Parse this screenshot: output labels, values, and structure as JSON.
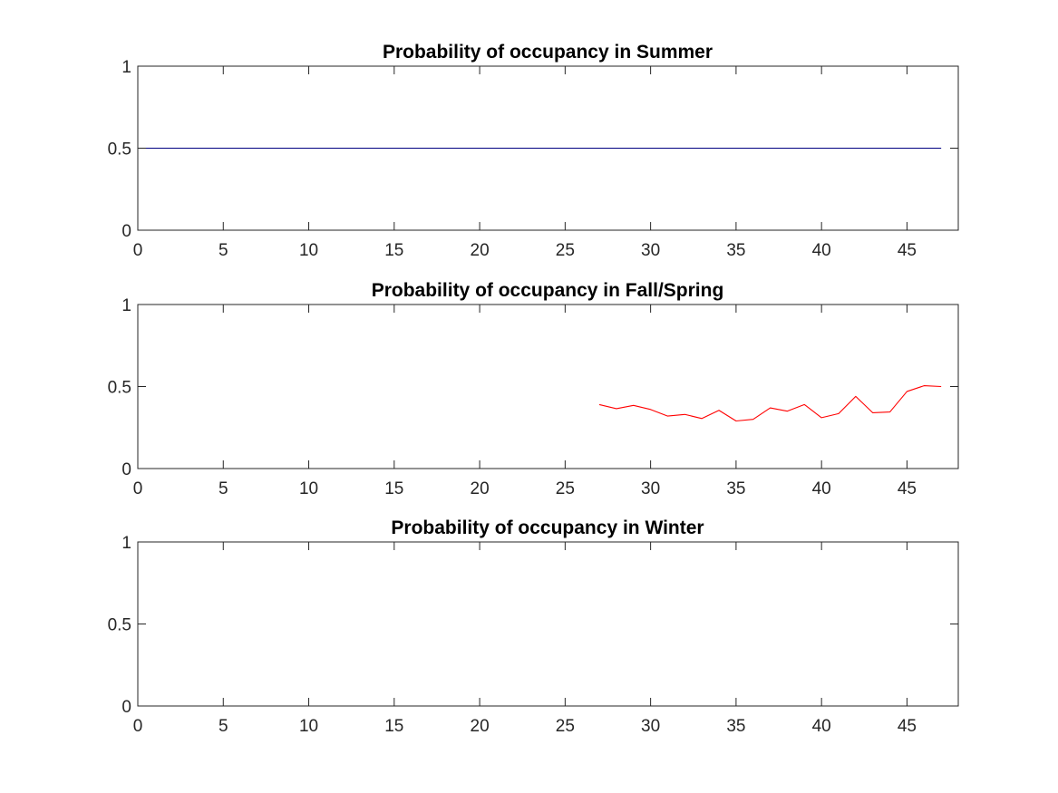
{
  "chart_data": [
    {
      "type": "line",
      "title": "Probability of occupancy in Summer",
      "xlabel": "",
      "ylabel": "",
      "xlim": [
        0,
        48
      ],
      "ylim": [
        0,
        1
      ],
      "x_ticks": [
        "0",
        "5",
        "10",
        "15",
        "20",
        "25",
        "30",
        "35",
        "40",
        "45"
      ],
      "y_ticks": [
        "0",
        "0.5",
        "1"
      ],
      "grid": false,
      "series": [
        {
          "color": "#000080",
          "x": [
            0,
            47
          ],
          "y": [
            0.5,
            0.5
          ]
        }
      ]
    },
    {
      "type": "line",
      "title": "Probability of occupancy in Fall/Spring",
      "xlabel": "",
      "ylabel": "",
      "xlim": [
        0,
        48
      ],
      "ylim": [
        0,
        1
      ],
      "x_ticks": [
        "0",
        "5",
        "10",
        "15",
        "20",
        "25",
        "30",
        "35",
        "40",
        "45"
      ],
      "y_ticks": [
        "0",
        "0.5",
        "1"
      ],
      "grid": false,
      "series": [
        {
          "color": "#ff0000",
          "x": [
            27,
            28,
            29,
            30,
            31,
            32,
            33,
            34,
            35,
            36,
            37,
            38,
            39,
            40,
            41,
            42,
            43,
            44,
            45,
            46,
            47
          ],
          "y": [
            0.39,
            0.365,
            0.385,
            0.36,
            0.32,
            0.33,
            0.305,
            0.355,
            0.29,
            0.3,
            0.37,
            0.35,
            0.39,
            0.31,
            0.335,
            0.44,
            0.34,
            0.345,
            0.47,
            0.505,
            0.5
          ]
        }
      ]
    },
    {
      "type": "line",
      "title": "Probability of occupancy in Winter",
      "xlabel": "",
      "ylabel": "",
      "xlim": [
        0,
        48
      ],
      "ylim": [
        0,
        1
      ],
      "x_ticks": [
        "0",
        "5",
        "10",
        "15",
        "20",
        "25",
        "30",
        "35",
        "40",
        "45"
      ],
      "y_ticks": [
        "0",
        "0.5",
        "1"
      ],
      "grid": false,
      "series": []
    }
  ]
}
